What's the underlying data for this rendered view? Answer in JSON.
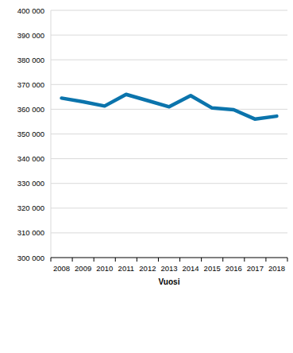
{
  "chart_data": {
    "type": "line",
    "x_label": "Vuosi",
    "categories": [
      "2008",
      "2009",
      "2010",
      "2011",
      "2012",
      "2013",
      "2014",
      "2015",
      "2016",
      "2017",
      "2018"
    ],
    "values": [
      364500,
      363000,
      361300,
      366000,
      363500,
      361000,
      365500,
      360500,
      359800,
      356000,
      357200
    ],
    "color": "#0b74ac",
    "ylim": [
      300000,
      400000
    ],
    "yticks": [
      {
        "value": 300000,
        "label": "300 000"
      },
      {
        "value": 310000,
        "label": "310 000"
      },
      {
        "value": 320000,
        "label": "320 000"
      },
      {
        "value": 330000,
        "label": "330 000"
      },
      {
        "value": 340000,
        "label": "340 000"
      },
      {
        "value": 350000,
        "label": "350 000"
      },
      {
        "value": 360000,
        "label": "360 000"
      },
      {
        "value": 370000,
        "label": "370 000"
      },
      {
        "value": 380000,
        "label": "380 000"
      },
      {
        "value": 390000,
        "label": "390 000"
      },
      {
        "value": 400000,
        "label": "400 000"
      }
    ],
    "grid": true
  }
}
